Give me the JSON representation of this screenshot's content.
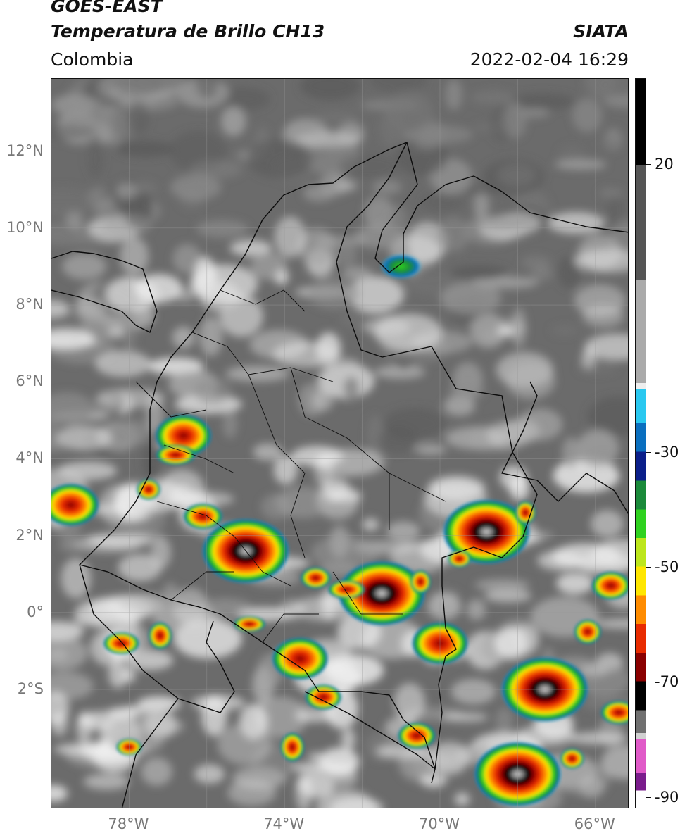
{
  "header": {
    "title_line1": "GOES-EAST",
    "title_line2": "Temperatura de Brillo CH13",
    "region": "Colombia",
    "agency": "SIATA",
    "timestamp": "2022-02-04 16:29"
  },
  "map": {
    "lat_labels": [
      "12°N",
      "10°N",
      "8°N",
      "6°N",
      "4°N",
      "2°N",
      "0°",
      "2°S"
    ],
    "lon_labels": [
      "78°W",
      "74°W",
      "70°W",
      "66°W"
    ],
    "colors": {
      "background_gray": "#6b6b6b",
      "border_line": "#111111"
    },
    "storm_cells": [
      {
        "name": "storm-cell-amazon-west",
        "lon": -75.0,
        "lat": 1.6,
        "intensity": "very-cold"
      },
      {
        "name": "storm-cell-caqueta",
        "lon": -71.5,
        "lat": 0.5,
        "intensity": "very-cold"
      },
      {
        "name": "storm-cell-guainia",
        "lon": -68.8,
        "lat": 2.1,
        "intensity": "very-cold"
      },
      {
        "name": "storm-cell-amazonas-brazil",
        "lon": -67.3,
        "lat": -2.0,
        "intensity": "very-cold"
      },
      {
        "name": "storm-cell-pacific",
        "lon": -79.5,
        "lat": 2.8,
        "intensity": "cold"
      },
      {
        "name": "storm-cell-antioquia",
        "lon": -76.6,
        "lat": 4.6,
        "intensity": "cold"
      },
      {
        "name": "storm-cell-vaupes",
        "lon": -70.0,
        "lat": -0.8,
        "intensity": "cold"
      },
      {
        "name": "storm-cell-putumayo",
        "lon": -73.6,
        "lat": -1.2,
        "intensity": "cold"
      },
      {
        "name": "storm-cell-amazon-south",
        "lon": -68.0,
        "lat": -4.2,
        "intensity": "very-cold"
      },
      {
        "name": "storm-cell-venezuela-north",
        "lon": -71.0,
        "lat": 9.0,
        "intensity": "moderate"
      }
    ]
  },
  "colorbar": {
    "tick_labels": [
      "20",
      "-30",
      "-50",
      "-70",
      "-90"
    ],
    "tick_values": [
      20,
      -30,
      -50,
      -70,
      -90
    ],
    "range": [
      -92,
      35
    ],
    "unit_note": "",
    "stops": [
      {
        "value": 35,
        "color": "#000000"
      },
      {
        "value": 20,
        "color": "#555555"
      },
      {
        "value": 0,
        "color": "#aaaaaa"
      },
      {
        "value": -18,
        "color": "#eeeeee"
      },
      {
        "value": -19,
        "color": "#29c8f0"
      },
      {
        "value": -25,
        "color": "#0a6fbf"
      },
      {
        "value": -30,
        "color": "#0b1f8a"
      },
      {
        "value": -35,
        "color": "#1a8a3a"
      },
      {
        "value": -40,
        "color": "#2fd21f"
      },
      {
        "value": -45,
        "color": "#bde61b"
      },
      {
        "value": -50,
        "color": "#ffe600"
      },
      {
        "value": -55,
        "color": "#ff8c00"
      },
      {
        "value": -60,
        "color": "#e82b00"
      },
      {
        "value": -65,
        "color": "#8a0000"
      },
      {
        "value": -70,
        "color": "#000000"
      },
      {
        "value": -75,
        "color": "#707070"
      },
      {
        "value": -79,
        "color": "#d0d0d0"
      },
      {
        "value": -80,
        "color": "#e05ac8"
      },
      {
        "value": -86,
        "color": "#7a1c8c"
      },
      {
        "value": -89,
        "color": "#ffffff"
      }
    ]
  }
}
